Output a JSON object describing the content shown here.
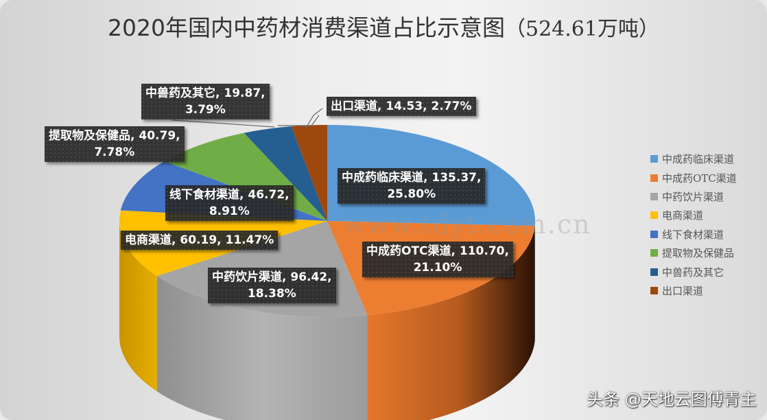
{
  "title": {
    "main": "2020年国内中药材消费渠道占比示意图",
    "unit": "（524.61万吨）"
  },
  "watermark": {
    "credit": "头条 @天地云图傅青主",
    "url": "www.tdyt.com.cn",
    "brand": "天地云图"
  },
  "colors": {
    "clinical": "#5b9bd5",
    "otc": "#ed7d31",
    "decoction": "#a5a5a5",
    "ecommerce": "#ffc000",
    "food": "#4472c4",
    "extract": "#70ad47",
    "veterinary": "#255e91",
    "export": "#9e480e"
  },
  "labels": [
    {
      "line1": "中成药临床渠道, 135.37,",
      "line2": "25.80%"
    },
    {
      "line1": "中成药OTC渠道, 110.70,",
      "line2": "21.10%"
    },
    {
      "line1": "中药饮片渠道, 96.42,",
      "line2": "18.38%"
    },
    {
      "line1": "电商渠道, 60.19, 11.47%",
      "line2": ""
    },
    {
      "line1": "线下食材渠道, 46.72,",
      "line2": "8.91%"
    },
    {
      "line1": "提取物及保健品, 40.79,",
      "line2": "7.78%"
    },
    {
      "line1": "中兽药及其它, 19.87,",
      "line2": "3.79%"
    },
    {
      "line1": "出口渠道, 14.53, 2.77%",
      "line2": ""
    }
  ],
  "legend": [
    {
      "label": "中成药临床渠道",
      "color": "#5b9bd5"
    },
    {
      "label": "中成药OTC渠道",
      "color": "#ed7d31"
    },
    {
      "label": "中药饮片渠道",
      "color": "#a5a5a5"
    },
    {
      "label": "电商渠道",
      "color": "#ffc000"
    },
    {
      "label": "线下食材渠道",
      "color": "#4472c4"
    },
    {
      "label": "提取物及保健品",
      "color": "#70ad47"
    },
    {
      "label": "中兽药及其它",
      "color": "#255e91"
    },
    {
      "label": "出口渠道",
      "color": "#9e480e"
    }
  ],
  "chart_data": {
    "type": "pie",
    "title": "2020年国内中药材消费渠道占比示意图（524.61万吨）",
    "total": 524.61,
    "unit": "万吨",
    "categories": [
      "中成药临床渠道",
      "中成药OTC渠道",
      "中药饮片渠道",
      "电商渠道",
      "线下食材渠道",
      "提取物及保健品",
      "中兽药及其它",
      "出口渠道"
    ],
    "values": [
      135.37,
      110.7,
      96.42,
      60.19,
      46.72,
      40.79,
      19.87,
      14.53
    ],
    "percentages": [
      25.8,
      21.1,
      18.38,
      11.47,
      8.91,
      7.78,
      3.79,
      2.77
    ],
    "legend_position": "right",
    "style": "3d-pie"
  }
}
